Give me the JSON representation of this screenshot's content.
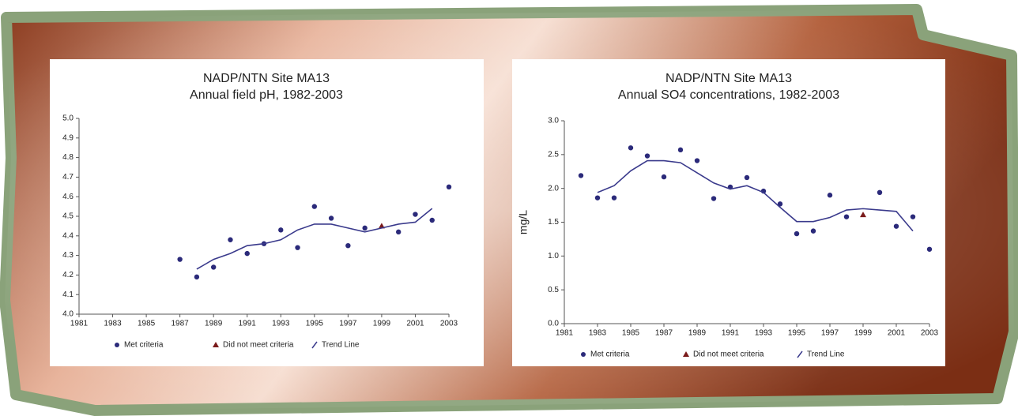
{
  "chart_data": [
    {
      "type": "scatter",
      "title": "NADP/NTN Site MA13",
      "subtitle": "Annual field pH, 1982-2003",
      "xlim": [
        1981,
        2003
      ],
      "xticks": [
        1981,
        1983,
        1985,
        1987,
        1989,
        1991,
        1993,
        1995,
        1997,
        1999,
        2001,
        2003
      ],
      "ylim": [
        4.0,
        5.0
      ],
      "yticks": [
        {
          "value": 4.0,
          "label": "4.0"
        },
        4.1,
        4.2,
        4.3,
        4.4,
        4.5,
        4.6,
        4.7,
        4.8,
        4.9,
        {
          "value": 5.0,
          "label": "5.0"
        }
      ],
      "series": [
        {
          "name": "Met criteria",
          "marker": "circle",
          "color": "#2b2a7a",
          "x": [
            1987,
            1988,
            1989,
            1990,
            1991,
            1992,
            1993,
            1994,
            1995,
            1996,
            1997,
            1998,
            2000,
            2001,
            2002,
            2003
          ],
          "values": [
            4.28,
            4.19,
            4.24,
            4.38,
            4.31,
            4.36,
            4.43,
            4.34,
            4.55,
            4.49,
            4.35,
            4.44,
            4.42,
            4.51,
            4.48,
            4.65
          ]
        },
        {
          "name": "Did not meet criteria",
          "marker": "triangle",
          "color": "#7a1a1a",
          "x": [
            1999
          ],
          "values": [
            4.45
          ]
        },
        {
          "name": "Trend Line",
          "marker": "line",
          "color": "#3a3a8c",
          "x": [
            1988,
            1989,
            1990,
            1991,
            1992,
            1993,
            1994,
            1995,
            1996,
            1997,
            1998,
            1999,
            2000,
            2001,
            2002
          ],
          "values": [
            4.23,
            4.28,
            4.31,
            4.35,
            4.36,
            4.38,
            4.43,
            4.46,
            4.46,
            4.44,
            4.42,
            4.44,
            4.46,
            4.47,
            4.54
          ]
        }
      ]
    },
    {
      "type": "scatter",
      "title": "NADP/NTN Site MA13",
      "subtitle": "Annual SO4 concentrations, 1982-2003",
      "ylabel": "mg/L",
      "xlim": [
        1981,
        2003
      ],
      "xticks": [
        1981,
        1983,
        1985,
        1987,
        1989,
        1991,
        1993,
        1995,
        1997,
        1999,
        2001,
        2003
      ],
      "ylim": [
        0.0,
        3.0
      ],
      "yticks": [
        {
          "value": 0.0,
          "label": "0.0"
        },
        0.5,
        {
          "value": 1.0,
          "label": "1.0"
        },
        1.5,
        {
          "value": 2.0,
          "label": "2.0"
        },
        2.5,
        {
          "value": 3.0,
          "label": "3.0"
        }
      ],
      "series": [
        {
          "name": "Met criteria",
          "marker": "circle",
          "color": "#2b2a7a",
          "x": [
            1982,
            1983,
            1984,
            1985,
            1986,
            1987,
            1988,
            1989,
            1990,
            1991,
            1992,
            1993,
            1994,
            1995,
            1996,
            1997,
            1998,
            2000,
            2001,
            2002,
            2003
          ],
          "values": [
            2.19,
            1.86,
            1.86,
            2.6,
            2.48,
            2.17,
            2.57,
            2.41,
            1.85,
            2.02,
            2.16,
            1.96,
            1.77,
            1.33,
            1.37,
            1.9,
            1.58,
            1.94,
            1.44,
            1.58,
            1.1
          ]
        },
        {
          "name": "Did not meet criteria",
          "marker": "triangle",
          "color": "#7a1a1a",
          "x": [
            1999
          ],
          "values": [
            1.61
          ]
        },
        {
          "name": "Trend Line",
          "marker": "line",
          "color": "#3a3a8c",
          "x": [
            1983,
            1984,
            1985,
            1986,
            1987,
            1988,
            1989,
            1990,
            1991,
            1992,
            1993,
            1994,
            1995,
            1996,
            1997,
            1998,
            1999,
            2000,
            2001,
            2002
          ],
          "values": [
            1.94,
            2.04,
            2.26,
            2.41,
            2.41,
            2.38,
            2.23,
            2.08,
            1.99,
            2.04,
            1.94,
            1.72,
            1.51,
            1.51,
            1.57,
            1.68,
            1.7,
            1.68,
            1.66,
            1.37
          ]
        }
      ]
    }
  ]
}
